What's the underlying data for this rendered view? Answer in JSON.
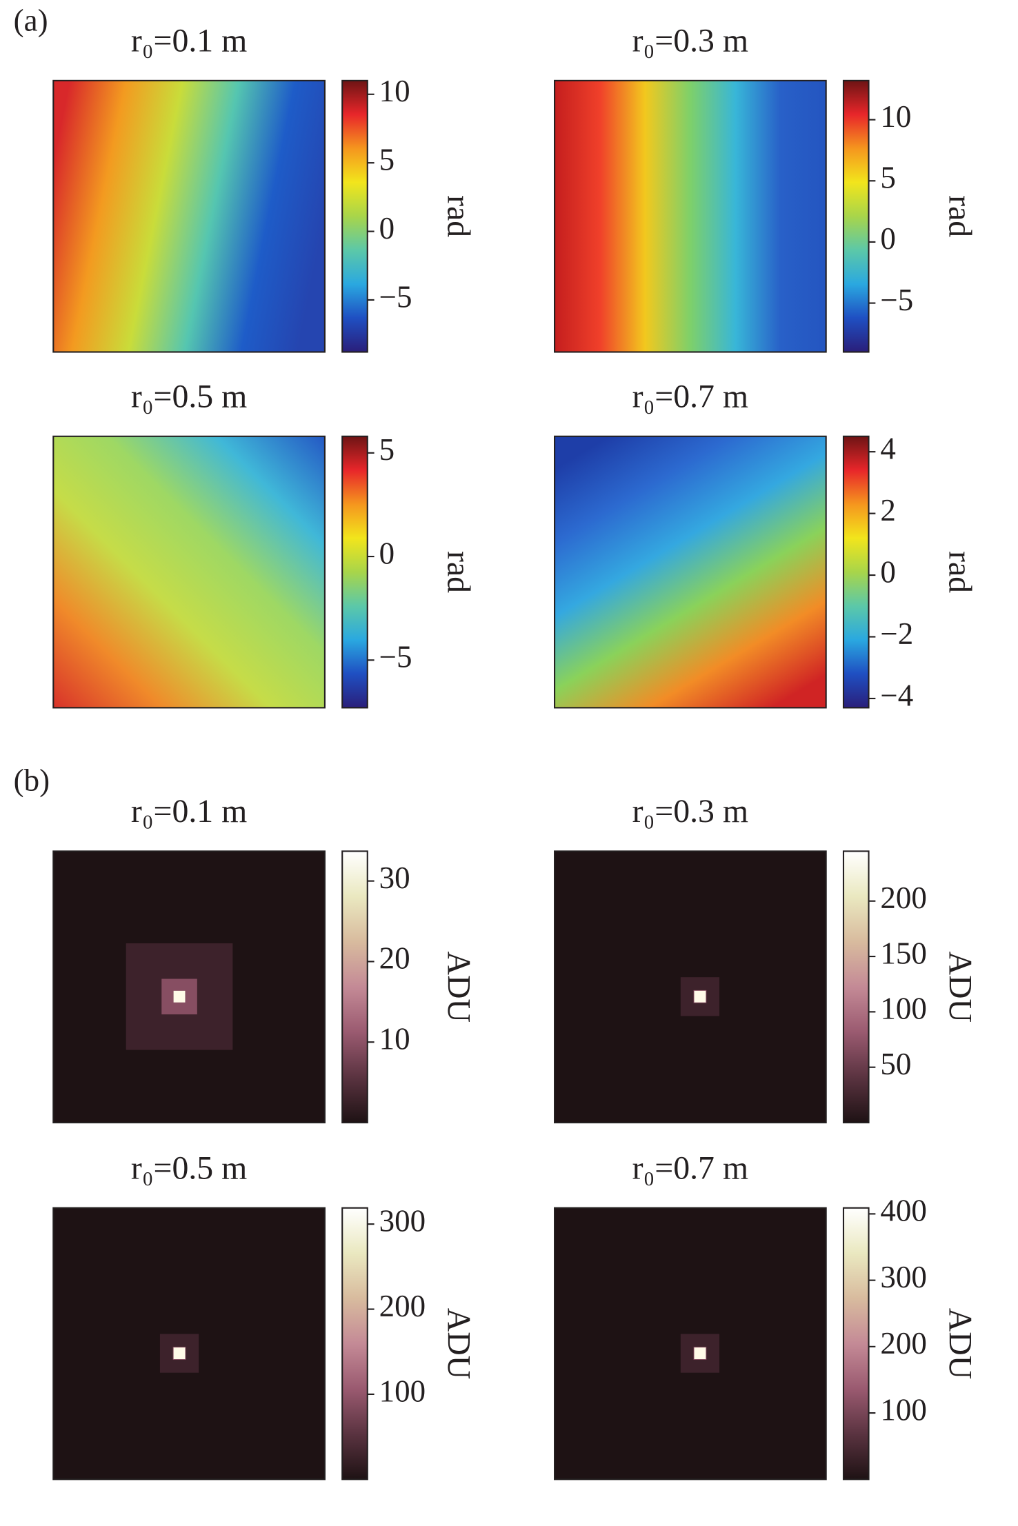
{
  "panel_labels": [
    "(a)",
    "(b)"
  ],
  "chart_data": [
    {
      "type": "heatmap",
      "title": "r₀=0.1 m",
      "colormap": "jet",
      "colorbar_label": "rad",
      "clim": [
        -8.8,
        11
      ],
      "cticks": [
        {
          "value": -5,
          "label": "−5"
        },
        0,
        5,
        10
      ]
    },
    {
      "type": "heatmap",
      "title": "r₀=0.3 m",
      "colormap": "jet",
      "colorbar_label": "rad",
      "clim": [
        -9,
        13.2
      ],
      "cticks": [
        {
          "value": -5,
          "label": "−5"
        },
        0,
        5,
        10
      ]
    },
    {
      "type": "heatmap",
      "title": "r₀=0.5 m",
      "colormap": "jet",
      "colorbar_label": "rad",
      "clim": [
        -7.3,
        5.8
      ],
      "cticks": [
        {
          "value": -5,
          "label": "−5"
        },
        0,
        5
      ]
    },
    {
      "type": "heatmap",
      "title": "r₀=0.7 m",
      "colormap": "jet",
      "colorbar_label": "rad",
      "clim": [
        -4.3,
        4.5
      ],
      "cticks": [
        {
          "value": -4,
          "label": "−4"
        },
        {
          "value": -2,
          "label": "−2"
        },
        0,
        2,
        4
      ]
    },
    {
      "type": "heatmap",
      "title": "r₀=0.1 m",
      "colormap": "pink",
      "colorbar_label": "ADU",
      "clim": [
        0,
        33.7
      ],
      "cticks": [
        10,
        20,
        30
      ]
    },
    {
      "type": "heatmap",
      "title": "r₀=0.3 m",
      "colormap": "pink",
      "colorbar_label": "ADU",
      "clim": [
        0,
        245
      ],
      "cticks": [
        50,
        100,
        150,
        200
      ]
    },
    {
      "type": "heatmap",
      "title": "r₀=0.5 m",
      "colormap": "pink",
      "colorbar_label": "ADU",
      "clim": [
        0,
        319
      ],
      "cticks": [
        100,
        200,
        300
      ]
    },
    {
      "type": "heatmap",
      "title": "r₀=0.7 m",
      "colormap": "pink",
      "colorbar_label": "ADU",
      "clim": [
        0,
        409
      ],
      "cticks": [
        100,
        200,
        300,
        400
      ]
    }
  ]
}
